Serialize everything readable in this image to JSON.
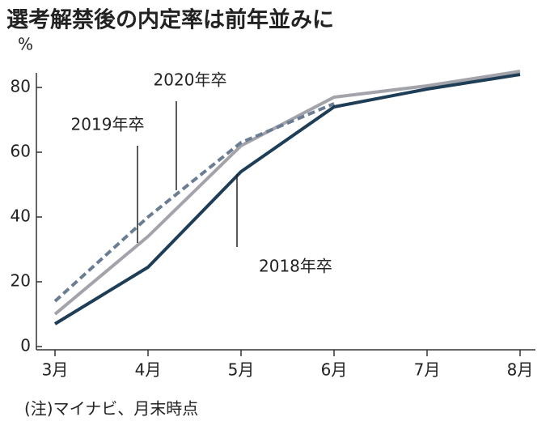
{
  "chart_data": {
    "type": "line",
    "title": "選考解禁後の内定率は前年並みに",
    "y_unit": "%",
    "note": "(注)マイナビ、月末時点",
    "categories": [
      "3月",
      "4月",
      "5月",
      "6月",
      "7月",
      "8月"
    ],
    "series": [
      {
        "name": "2018年卒",
        "color": "#1e3d57",
        "dash": false,
        "values": [
          7,
          24.5,
          54,
          74,
          79.5,
          84
        ]
      },
      {
        "name": "2019年卒",
        "color": "#a3a3ab",
        "dash": false,
        "values": [
          10,
          34,
          62,
          77,
          80.5,
          85
        ]
      },
      {
        "name": "2020年卒",
        "color": "#6a7d92",
        "dash": true,
        "values": [
          14,
          40,
          63,
          75,
          null,
          null
        ]
      }
    ],
    "ylim": [
      0,
      87
    ],
    "yticks": [
      0,
      20,
      40,
      60,
      80
    ],
    "grid": false
  }
}
